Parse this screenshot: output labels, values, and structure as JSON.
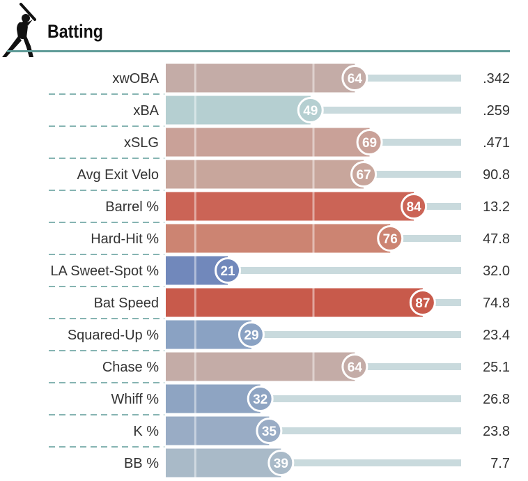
{
  "header": {
    "title": "Batting",
    "icon": "batter-silhouette-icon",
    "rule_color": "#5f9b98"
  },
  "chart_data": {
    "type": "bar",
    "title": "Batting",
    "xlim": [
      0,
      100
    ],
    "categories": [
      "xwOBA",
      "xBA",
      "xSLG",
      "Avg Exit Velo",
      "Barrel %",
      "Hard-Hit %",
      "LA Sweet-Spot %",
      "Bat Speed",
      "Squared-Up %",
      "Chase %",
      "Whiff %",
      "K %",
      "BB %"
    ],
    "series": [
      {
        "percentiles": [
          64,
          49,
          69,
          67,
          84,
          76,
          21,
          87,
          29,
          64,
          32,
          35,
          39
        ],
        "bar_colors": [
          "#c4aca7",
          "#b5cfd1",
          "#c9a198",
          "#c8a69c",
          "#cb6456",
          "#cc8472",
          "#7188bb",
          "#c85a4b",
          "#8aa2c3",
          "#c4aca7",
          "#8ea4c2",
          "#99acc5",
          "#a9bac8"
        ]
      }
    ],
    "stat_values": [
      ".342",
      ".259",
      ".471",
      "90.8",
      "13.2",
      "47.8",
      "32.0",
      "74.8",
      "23.4",
      "25.1",
      "26.8",
      "23.8",
      "7.7"
    ],
    "reference_percentiles": [
      10,
      50,
      90
    ],
    "track_color": "#c9dadd",
    "divider_color": "#5f9b98"
  }
}
